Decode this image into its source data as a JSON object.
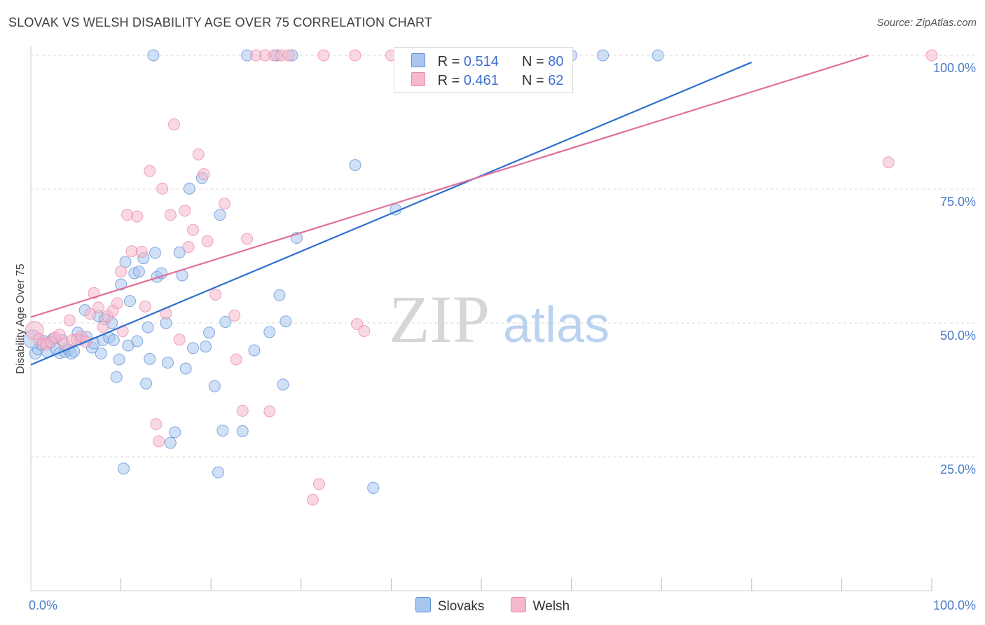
{
  "title": "SLOVAK VS WELSH DISABILITY AGE OVER 75 CORRELATION CHART",
  "source": "Source: ZipAtlas.com",
  "watermark": {
    "zip": "ZIP",
    "atlas": "atlas"
  },
  "legend": {
    "slovaks": {
      "r_label": "R =",
      "r_value": "0.514",
      "n_label": "N =",
      "n_value": "80"
    },
    "welsh": {
      "r_label": "R =",
      "r_value": "0.461",
      "n_label": "N =",
      "n_value": "62"
    }
  },
  "bottom_legend": {
    "slovaks": "Slovaks",
    "welsh": "Welsh"
  },
  "colors": {
    "slovaks_fill": "#a9c6ef",
    "slovaks_stroke": "#5d8fd6",
    "slovaks_line": "#2f6fcf",
    "welsh_fill": "#f5b8cc",
    "welsh_stroke": "#e889a8",
    "welsh_line": "#e0709a",
    "tick_text": "#4a7cc9",
    "grid": "#d9d9d9"
  },
  "chart_data": {
    "type": "scatter",
    "title": "SLOVAK VS WELSH DISABILITY AGE OVER 75 CORRELATION CHART",
    "xlabel": "",
    "ylabel": "Disability Age Over 75",
    "xlim": [
      0,
      100
    ],
    "ylim": [
      0,
      100
    ],
    "x_tick_labels": [
      "0.0%",
      "100.0%"
    ],
    "y_tick_labels": [
      "25.0%",
      "50.0%",
      "75.0%",
      "100.0%"
    ],
    "y_tick_values": [
      25,
      50,
      75,
      100
    ],
    "grid": true,
    "series": [
      {
        "name": "Slovaks",
        "trend": {
          "x": [
            0,
            80
          ],
          "y": [
            42.2,
            98.7
          ]
        },
        "points": [
          [
            0.5,
            44.3
          ],
          [
            0.8,
            45.1
          ],
          [
            1.2,
            45.9
          ],
          [
            1.5,
            46.6
          ],
          [
            1.8,
            44.6
          ],
          [
            2.2,
            46.4
          ],
          [
            2.5,
            47.1
          ],
          [
            2.8,
            45.2
          ],
          [
            3.2,
            44.4
          ],
          [
            3.5,
            46.8
          ],
          [
            3.8,
            44.6
          ],
          [
            4.2,
            45.0
          ],
          [
            4.5,
            44.3
          ],
          [
            4.8,
            44.7
          ],
          [
            5.2,
            48.2
          ],
          [
            5.5,
            46.9
          ],
          [
            6.0,
            52.4
          ],
          [
            6.2,
            47.4
          ],
          [
            6.8,
            45.4
          ],
          [
            7.0,
            46.2
          ],
          [
            7.5,
            51.3
          ],
          [
            7.8,
            44.3
          ],
          [
            8.0,
            46.8
          ],
          [
            8.2,
            50.7
          ],
          [
            8.7,
            47.3
          ],
          [
            9.0,
            50.0
          ],
          [
            9.2,
            46.8
          ],
          [
            9.5,
            39.9
          ],
          [
            9.8,
            43.2
          ],
          [
            10.0,
            57.2
          ],
          [
            10.3,
            22.8
          ],
          [
            10.5,
            61.4
          ],
          [
            10.8,
            45.8
          ],
          [
            11.0,
            54.1
          ],
          [
            11.5,
            59.3
          ],
          [
            11.8,
            46.6
          ],
          [
            12.0,
            59.6
          ],
          [
            12.5,
            62.1
          ],
          [
            12.8,
            38.7
          ],
          [
            13.0,
            49.2
          ],
          [
            13.2,
            43.3
          ],
          [
            13.6,
            100.0
          ],
          [
            13.8,
            63.1
          ],
          [
            14.0,
            58.6
          ],
          [
            14.5,
            59.3
          ],
          [
            15.2,
            42.6
          ],
          [
            15.0,
            50.0
          ],
          [
            15.5,
            27.6
          ],
          [
            16.0,
            29.6
          ],
          [
            16.5,
            63.2
          ],
          [
            16.8,
            58.9
          ],
          [
            17.2,
            41.5
          ],
          [
            17.6,
            75.1
          ],
          [
            18.0,
            45.3
          ],
          [
            19.0,
            77.1
          ],
          [
            19.4,
            45.6
          ],
          [
            19.8,
            48.2
          ],
          [
            20.4,
            38.2
          ],
          [
            20.8,
            22.1
          ],
          [
            21.0,
            70.2
          ],
          [
            21.3,
            29.9
          ],
          [
            21.6,
            50.2
          ],
          [
            23.5,
            29.8
          ],
          [
            24.0,
            100.0
          ],
          [
            24.8,
            44.9
          ],
          [
            26.5,
            48.3
          ],
          [
            27.3,
            100.0
          ],
          [
            27.6,
            55.2
          ],
          [
            28.0,
            38.5
          ],
          [
            28.3,
            50.3
          ],
          [
            29.0,
            100.0
          ],
          [
            29.5,
            65.9
          ],
          [
            36.0,
            79.5
          ],
          [
            38.0,
            19.2
          ],
          [
            40.5,
            71.2
          ],
          [
            51.0,
            100.0
          ],
          [
            60.0,
            100.0
          ],
          [
            63.5,
            100.0
          ],
          [
            69.6,
            100.0
          ],
          [
            0.2,
            47.0
          ]
        ]
      },
      {
        "name": "Welsh",
        "trend": {
          "x": [
            0,
            93
          ],
          "y": [
            51.1,
            100.0
          ]
        },
        "points": [
          [
            0.4,
            48.6
          ],
          [
            0.9,
            47.0
          ],
          [
            1.3,
            46.2
          ],
          [
            1.7,
            46.0
          ],
          [
            2.2,
            46.5
          ],
          [
            2.7,
            47.3
          ],
          [
            3.2,
            47.8
          ],
          [
            3.7,
            46.1
          ],
          [
            4.3,
            50.5
          ],
          [
            4.6,
            46.8
          ],
          [
            5.1,
            46.9
          ],
          [
            5.6,
            47.5
          ],
          [
            6.1,
            46.5
          ],
          [
            6.6,
            51.7
          ],
          [
            7.0,
            55.6
          ],
          [
            7.5,
            52.9
          ],
          [
            8.0,
            49.3
          ],
          [
            8.5,
            51.3
          ],
          [
            9.1,
            52.3
          ],
          [
            9.6,
            53.7
          ],
          [
            10.0,
            59.6
          ],
          [
            10.2,
            48.5
          ],
          [
            10.7,
            70.2
          ],
          [
            11.2,
            63.4
          ],
          [
            11.8,
            69.9
          ],
          [
            12.3,
            63.3
          ],
          [
            12.7,
            53.1
          ],
          [
            13.2,
            78.4
          ],
          [
            13.9,
            31.1
          ],
          [
            14.2,
            27.9
          ],
          [
            14.6,
            75.1
          ],
          [
            15.0,
            51.8
          ],
          [
            15.5,
            70.2
          ],
          [
            15.9,
            87.1
          ],
          [
            16.5,
            46.9
          ],
          [
            17.1,
            71.0
          ],
          [
            17.5,
            64.2
          ],
          [
            18.0,
            67.4
          ],
          [
            18.6,
            81.5
          ],
          [
            19.2,
            77.8
          ],
          [
            19.6,
            65.3
          ],
          [
            20.5,
            55.3
          ],
          [
            21.5,
            72.3
          ],
          [
            22.6,
            51.4
          ],
          [
            22.8,
            43.2
          ],
          [
            23.5,
            33.6
          ],
          [
            24.0,
            65.7
          ],
          [
            25.0,
            100.0
          ],
          [
            26.0,
            100.0
          ],
          [
            26.5,
            33.5
          ],
          [
            27.0,
            100.0
          ],
          [
            27.8,
            100.0
          ],
          [
            28.6,
            100.0
          ],
          [
            31.3,
            17.0
          ],
          [
            32.0,
            19.9
          ],
          [
            32.5,
            100.0
          ],
          [
            36.0,
            100.0
          ],
          [
            36.2,
            49.8
          ],
          [
            37.0,
            48.5
          ],
          [
            40.0,
            100.0
          ],
          [
            95.2,
            80.0
          ],
          [
            100.0,
            100.0
          ]
        ]
      }
    ]
  }
}
